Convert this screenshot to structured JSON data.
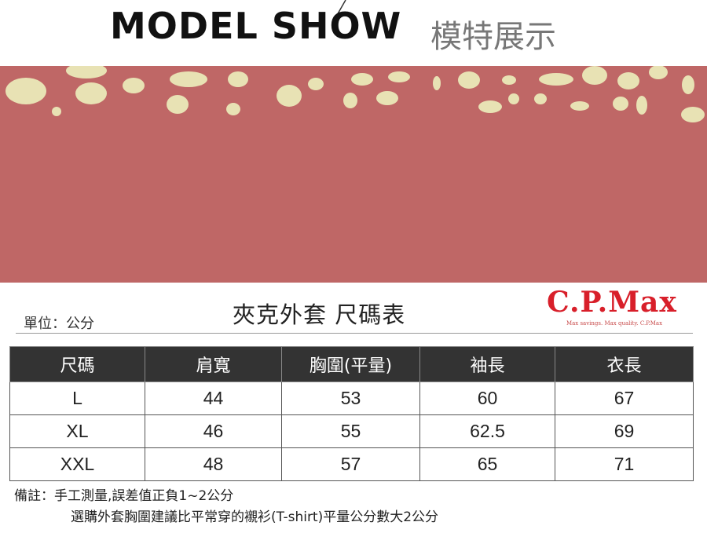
{
  "header": {
    "title": "MODEL SHOW",
    "subtitle": "模特展示"
  },
  "size_chart": {
    "unit": "單位：公分",
    "title": "夾克外套 尺碼表",
    "brand": "C.P.Max",
    "brand_tagline": "Max savings. Max quality. C.P.Max",
    "columns": [
      "尺碼",
      "肩寬",
      "胸圍(平量)",
      "袖長",
      "衣長"
    ],
    "rows": [
      [
        "L",
        "44",
        "53",
        "60",
        "67"
      ],
      [
        "XL",
        "46",
        "55",
        "62.5",
        "69"
      ],
      [
        "XXL",
        "48",
        "57",
        "65",
        "71"
      ]
    ]
  },
  "notes": {
    "label": "備註：",
    "line1": "手工測量,誤差值正負1~2公分",
    "line2": "選購外套胸圍建議比平常穿的襯衫(T-shirt)平量公分數大2公分"
  },
  "colors": {
    "banner": "#bf6766",
    "dots": "#e8e2b4",
    "brand": "#d81f2a",
    "table_header": "#333333"
  }
}
